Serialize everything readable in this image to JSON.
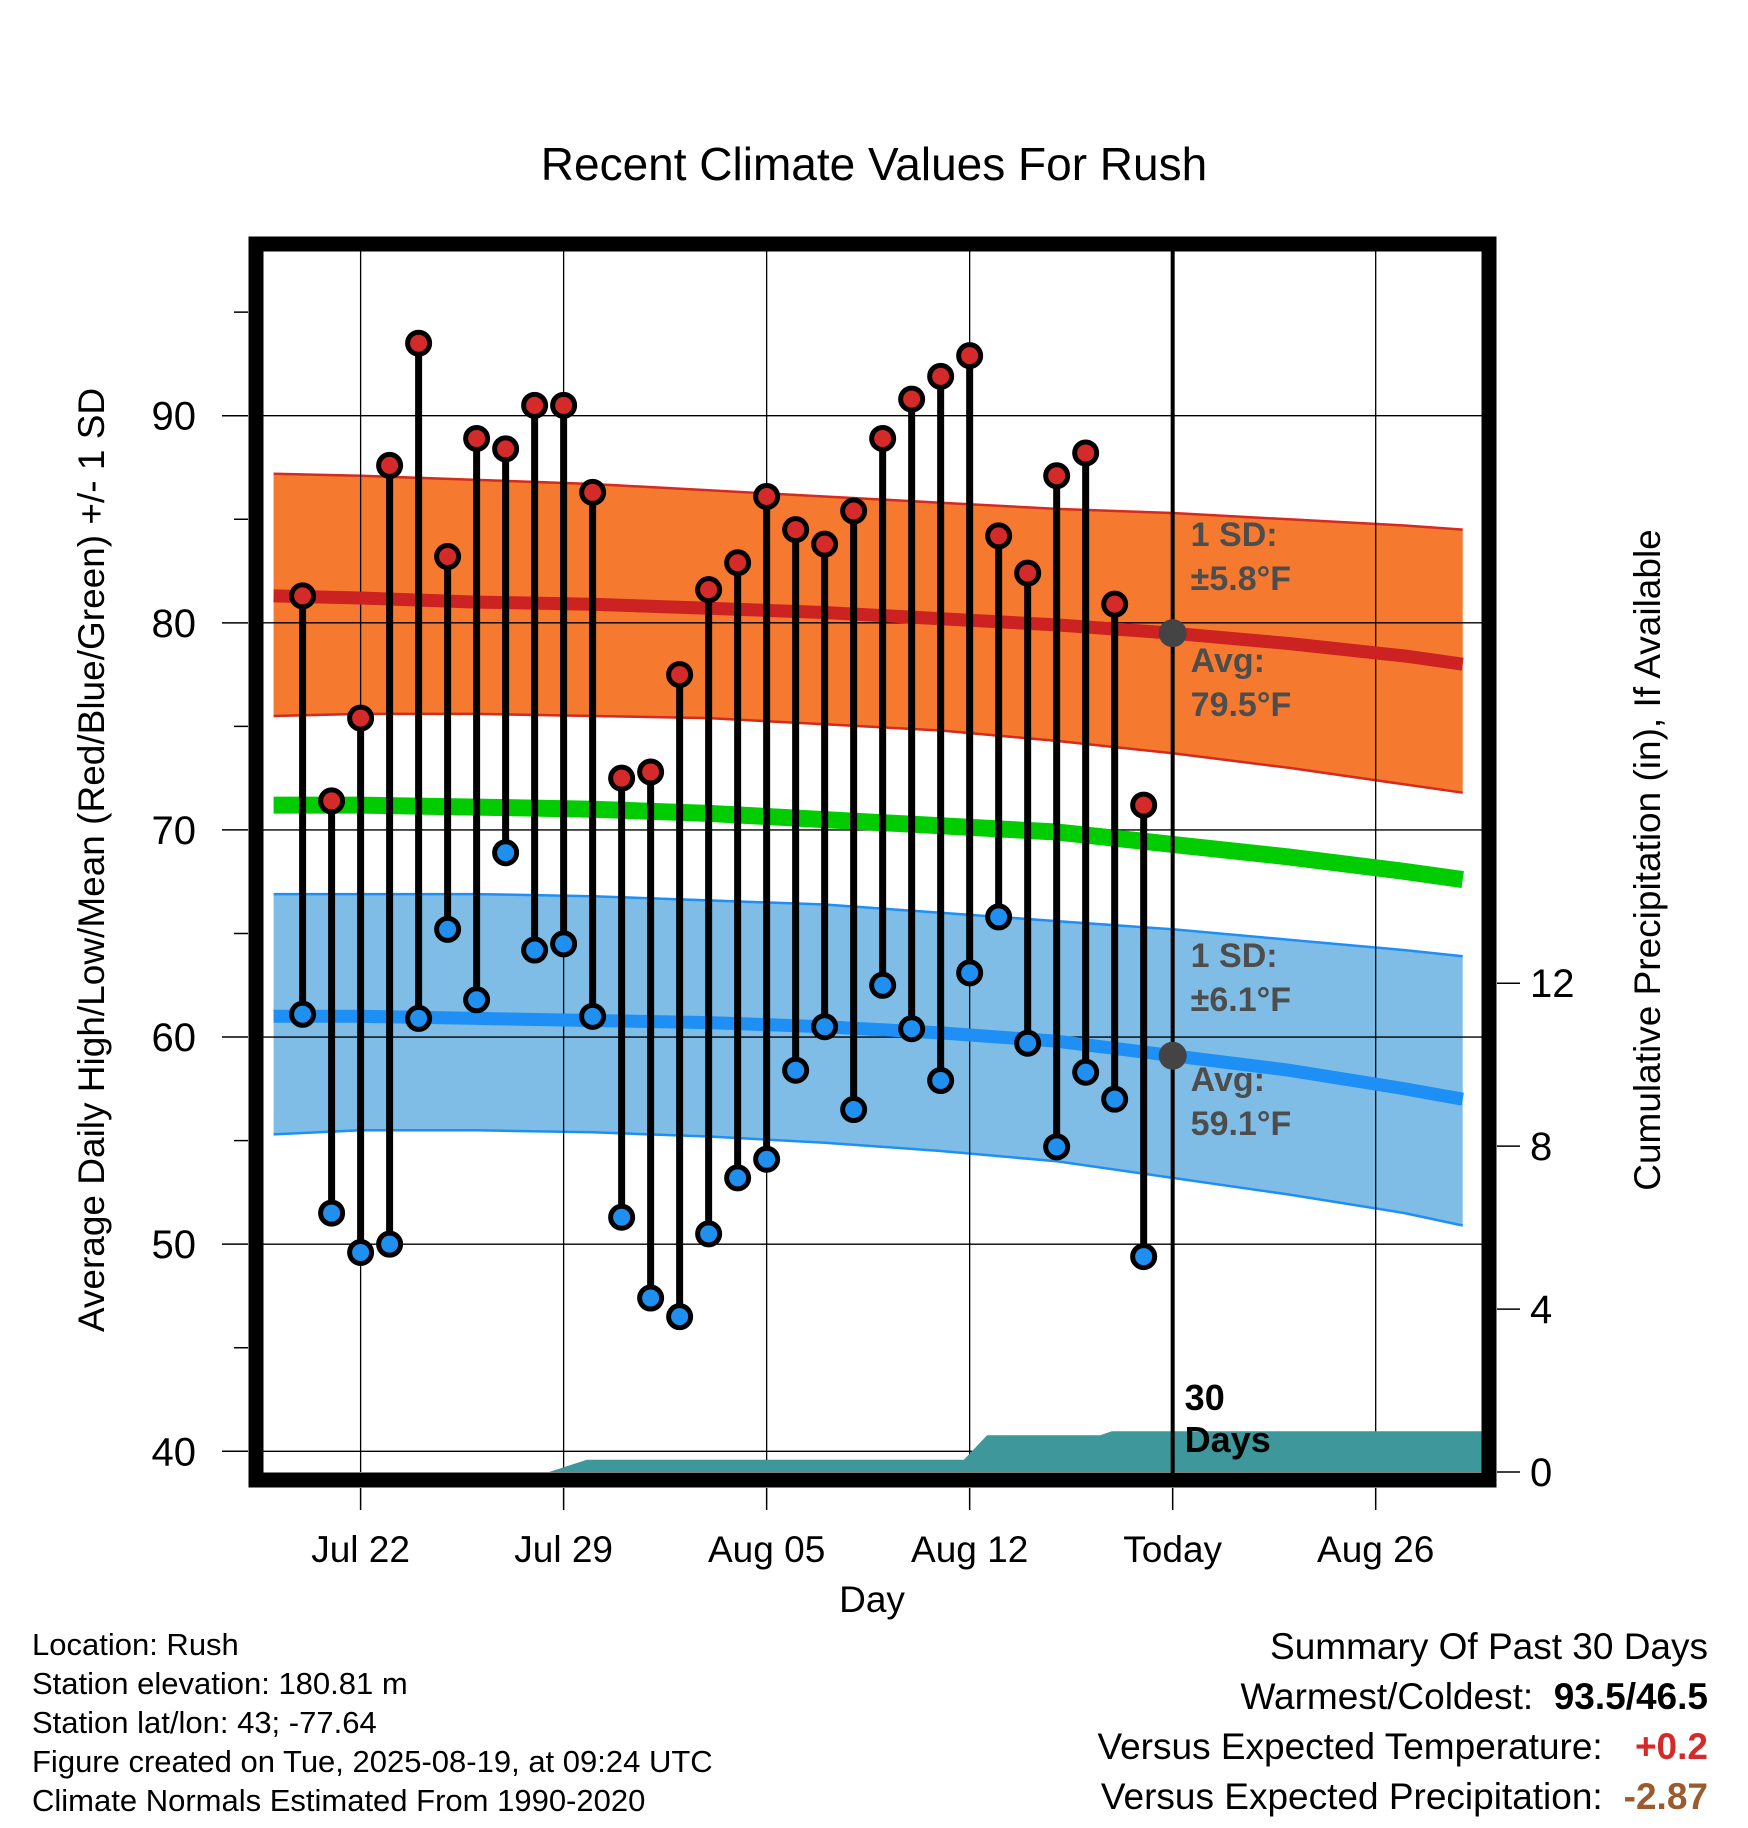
{
  "chart_data": {
    "type": "line",
    "title": "Recent Climate Values For Rush",
    "xlabel": "Day",
    "ylabel": "Average Daily High/Low/Mean (Red/Blue/Green) +/- 1 SD",
    "y2label": "Cumulative Precipitation (in), If Available",
    "ylim": [
      39,
      98
    ],
    "y2lim": [
      0,
      30
    ],
    "xlim": [
      -31.4,
      10.7
    ],
    "y_ticks": [
      40,
      50,
      60,
      70,
      80,
      90
    ],
    "y2_ticks": [
      0,
      4,
      8,
      12
    ],
    "x_ticks": [
      {
        "label": "Jul 22",
        "day": -28
      },
      {
        "label": "Jul 29",
        "day": -21
      },
      {
        "label": "Aug 05",
        "day": -14
      },
      {
        "label": "Aug 12",
        "day": -7
      },
      {
        "label": "Today",
        "day": 0
      },
      {
        "label": "Aug 26",
        "day": 7
      }
    ],
    "grid": true,
    "today_marker": {
      "day": 0,
      "label_line1": "30",
      "label_line2": "Days"
    },
    "observed": {
      "days": [
        -30,
        -29,
        -28,
        -27,
        -26,
        -25,
        -24,
        -23,
        -22,
        -21,
        -20,
        -19,
        -18,
        -17,
        -16,
        -15,
        -14,
        -13,
        -12,
        -11,
        -10,
        -9,
        -8,
        -7,
        -6,
        -5,
        -4,
        -3,
        -2,
        -1
      ],
      "high": [
        81.3,
        71.4,
        75.4,
        87.6,
        93.5,
        83.2,
        88.9,
        88.4,
        90.5,
        90.5,
        86.3,
        72.5,
        72.8,
        77.5,
        81.6,
        82.9,
        86.1,
        84.5,
        83.8,
        85.4,
        88.9,
        90.8,
        91.9,
        92.9,
        84.2,
        82.4,
        87.1,
        88.2,
        80.9,
        71.2
      ],
      "low": [
        61.1,
        51.5,
        49.6,
        50.0,
        60.9,
        65.2,
        61.8,
        68.9,
        64.2,
        64.5,
        61.0,
        51.3,
        47.4,
        46.5,
        50.5,
        53.2,
        54.1,
        58.4,
        60.5,
        56.5,
        62.5,
        60.4,
        57.9,
        63.1,
        65.8,
        59.7,
        54.7,
        58.3,
        57.0,
        49.4
      ]
    },
    "normals": {
      "days": [
        -31,
        -28,
        -24,
        -20,
        -16,
        -12,
        -8,
        -4,
        0,
        4,
        8,
        10
      ],
      "high_avg": [
        81.3,
        81.2,
        81.0,
        80.9,
        80.7,
        80.5,
        80.2,
        79.9,
        79.5,
        79.0,
        78.4,
        78.0
      ],
      "high_sd_upper": [
        87.2,
        87.1,
        86.9,
        86.7,
        86.4,
        86.1,
        85.8,
        85.5,
        85.3,
        85.0,
        84.7,
        84.5
      ],
      "high_sd_lower": [
        75.5,
        75.6,
        75.6,
        75.5,
        75.4,
        75.1,
        74.8,
        74.3,
        73.7,
        73.0,
        72.2,
        71.8
      ],
      "mean_avg": [
        71.2,
        71.2,
        71.1,
        71.0,
        70.8,
        70.5,
        70.2,
        69.9,
        69.3,
        68.7,
        68.0,
        67.6
      ],
      "low_avg": [
        61.0,
        61.0,
        60.9,
        60.8,
        60.7,
        60.5,
        60.2,
        59.8,
        59.1,
        58.4,
        57.5,
        57.0
      ],
      "low_sd_upper": [
        66.9,
        66.9,
        66.9,
        66.8,
        66.6,
        66.4,
        66.0,
        65.6,
        65.2,
        64.7,
        64.2,
        63.9
      ],
      "low_sd_lower": [
        55.3,
        55.5,
        55.5,
        55.4,
        55.2,
        54.9,
        54.5,
        54.0,
        53.2,
        52.4,
        51.5,
        50.9
      ]
    },
    "precipitation": {
      "days": [
        -31,
        -21.5,
        -20.2,
        -10,
        -7.2,
        -6.4,
        -2.5,
        -2.1,
        10.7
      ],
      "cumulative": [
        0.0,
        0.0,
        0.3,
        0.3,
        0.3,
        0.9,
        0.9,
        1.0,
        1.0
      ]
    },
    "annotations": {
      "high_sd_label": "1 SD:",
      "high_sd_value": "±5.8°F",
      "high_avg_label": "Avg:",
      "high_avg_value": "79.5°F",
      "low_sd_label": "1 SD:",
      "low_sd_value": "±6.1°F",
      "low_avg_label": "Avg:",
      "low_avg_value": "59.1°F",
      "today_high_avg": 79.5,
      "today_low_avg": 59.1
    },
    "colors": {
      "high_band": "#f57a2f",
      "high_line": "#cc2222",
      "high_edge": "#d42a1f",
      "low_band": "#7fbde6",
      "low_line": "#1e8ff5",
      "low_edge": "#1e8ff5",
      "mean_line": "#00cc00",
      "precip_fill": "#3d979b",
      "high_dot": "#d42a2a",
      "low_dot": "#1f8ff0",
      "today_dot": "#444444",
      "annotation_text": "#4d4d4d"
    }
  },
  "info_left": {
    "location": "Location: Rush",
    "elevation": "Station elevation: 180.81 m",
    "latlon": "Station lat/lon: 43; -77.64",
    "created": "Figure created on Tue, 2025-08-19, at 09:24 UTC",
    "normals": "Climate Normals Estimated From 1990-2020"
  },
  "summary": {
    "title": "Summary Of Past 30 Days",
    "warmest_label": "Warmest/Coldest:",
    "warmest_value": "93.5/46.5",
    "temp_label": "Versus Expected Temperature:",
    "temp_value": "+0.2",
    "precip_label": "Versus Expected Precipitation:",
    "precip_value": "-2.87"
  }
}
